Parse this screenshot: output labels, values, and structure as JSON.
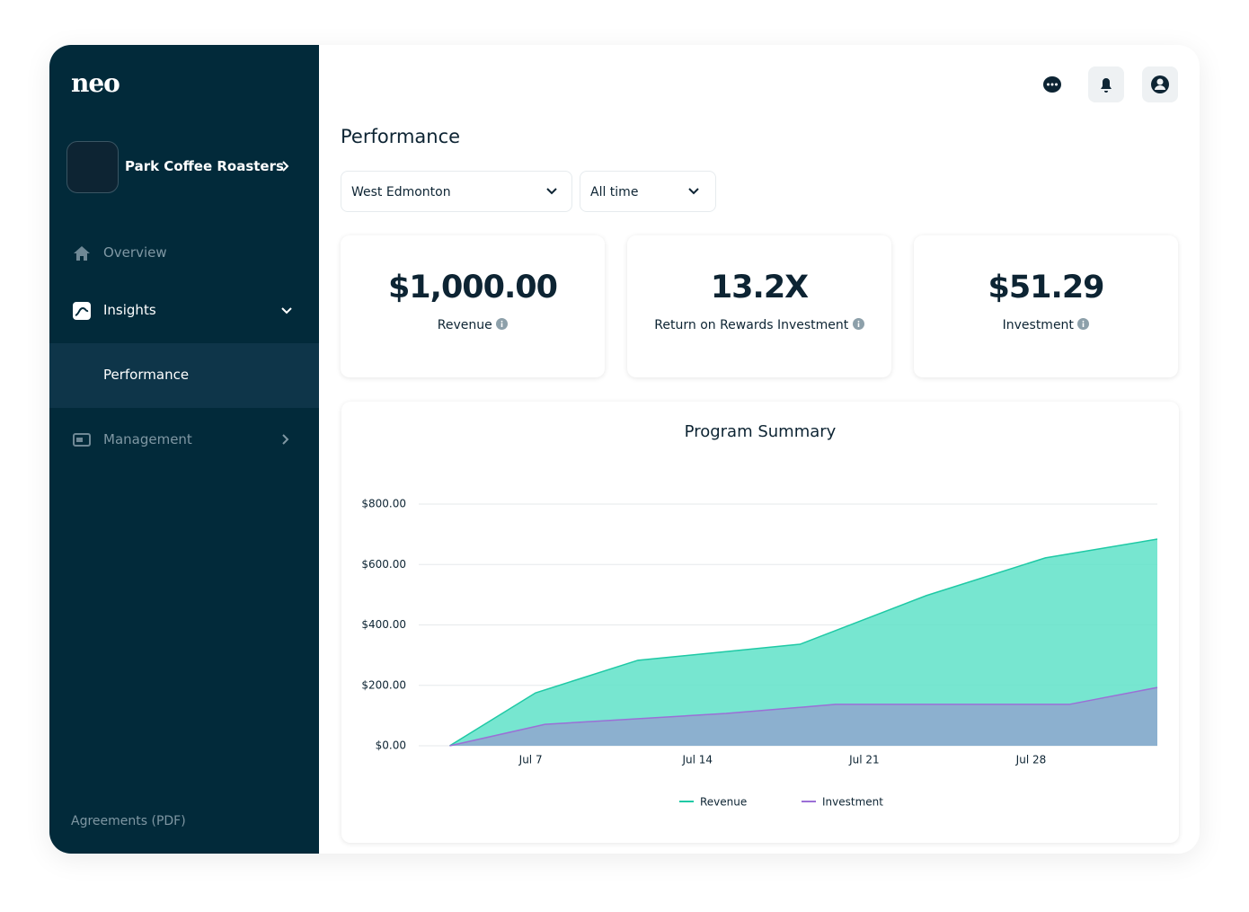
{
  "sidebar": {
    "logo": "neo",
    "account": "Park Coffee Roasters",
    "nav": [
      "Overview",
      "Insights",
      "Performance",
      "Management"
    ],
    "footer": "Agreements (PDF)"
  },
  "page": {
    "title": "Performance",
    "filters": [
      "West Edmonton",
      "All time"
    ]
  },
  "kpis": [
    {
      "value": "$1,000.00",
      "label": "Revenue"
    },
    {
      "value": "13.2X",
      "label": "Return on Rewards Investment"
    },
    {
      "value": "$51.29",
      "label": "Investment"
    }
  ],
  "chart_data": {
    "type": "area",
    "title": "Program Summary",
    "xlim": [
      2.3,
      33.3
    ],
    "xticks": [
      {
        "value": 7,
        "label": "Jul 7"
      },
      {
        "value": 14,
        "label": "Jul 14"
      },
      {
        "value": 21,
        "label": "Jul 21"
      },
      {
        "value": 28,
        "label": "Jul 28"
      }
    ],
    "ylim": [
      0,
      800
    ],
    "yticks": [
      {
        "value": 0,
        "label": "$0.00"
      },
      {
        "value": 200,
        "label": "$200.00"
      },
      {
        "value": 400,
        "label": "$400.00"
      },
      {
        "value": 600,
        "label": "$600.00"
      },
      {
        "value": 800,
        "label": "$800.00"
      }
    ],
    "grid": true,
    "series": [
      {
        "name": "Revenue",
        "color": "#1fc9a5",
        "fill": "#5fe2c8",
        "x": [
          3.6,
          7.2,
          11.5,
          18.3,
          23.6,
          28.6,
          33.3
        ],
        "values": [
          0,
          175,
          283,
          336,
          497,
          622,
          684
        ]
      },
      {
        "name": "Investment",
        "color": "#9b6fd6",
        "fill": "#8fa6cf",
        "x": [
          3.6,
          7.6,
          15.2,
          19.8,
          29.6,
          33.3
        ],
        "values": [
          0,
          71,
          107,
          137,
          137,
          193
        ]
      }
    ]
  }
}
